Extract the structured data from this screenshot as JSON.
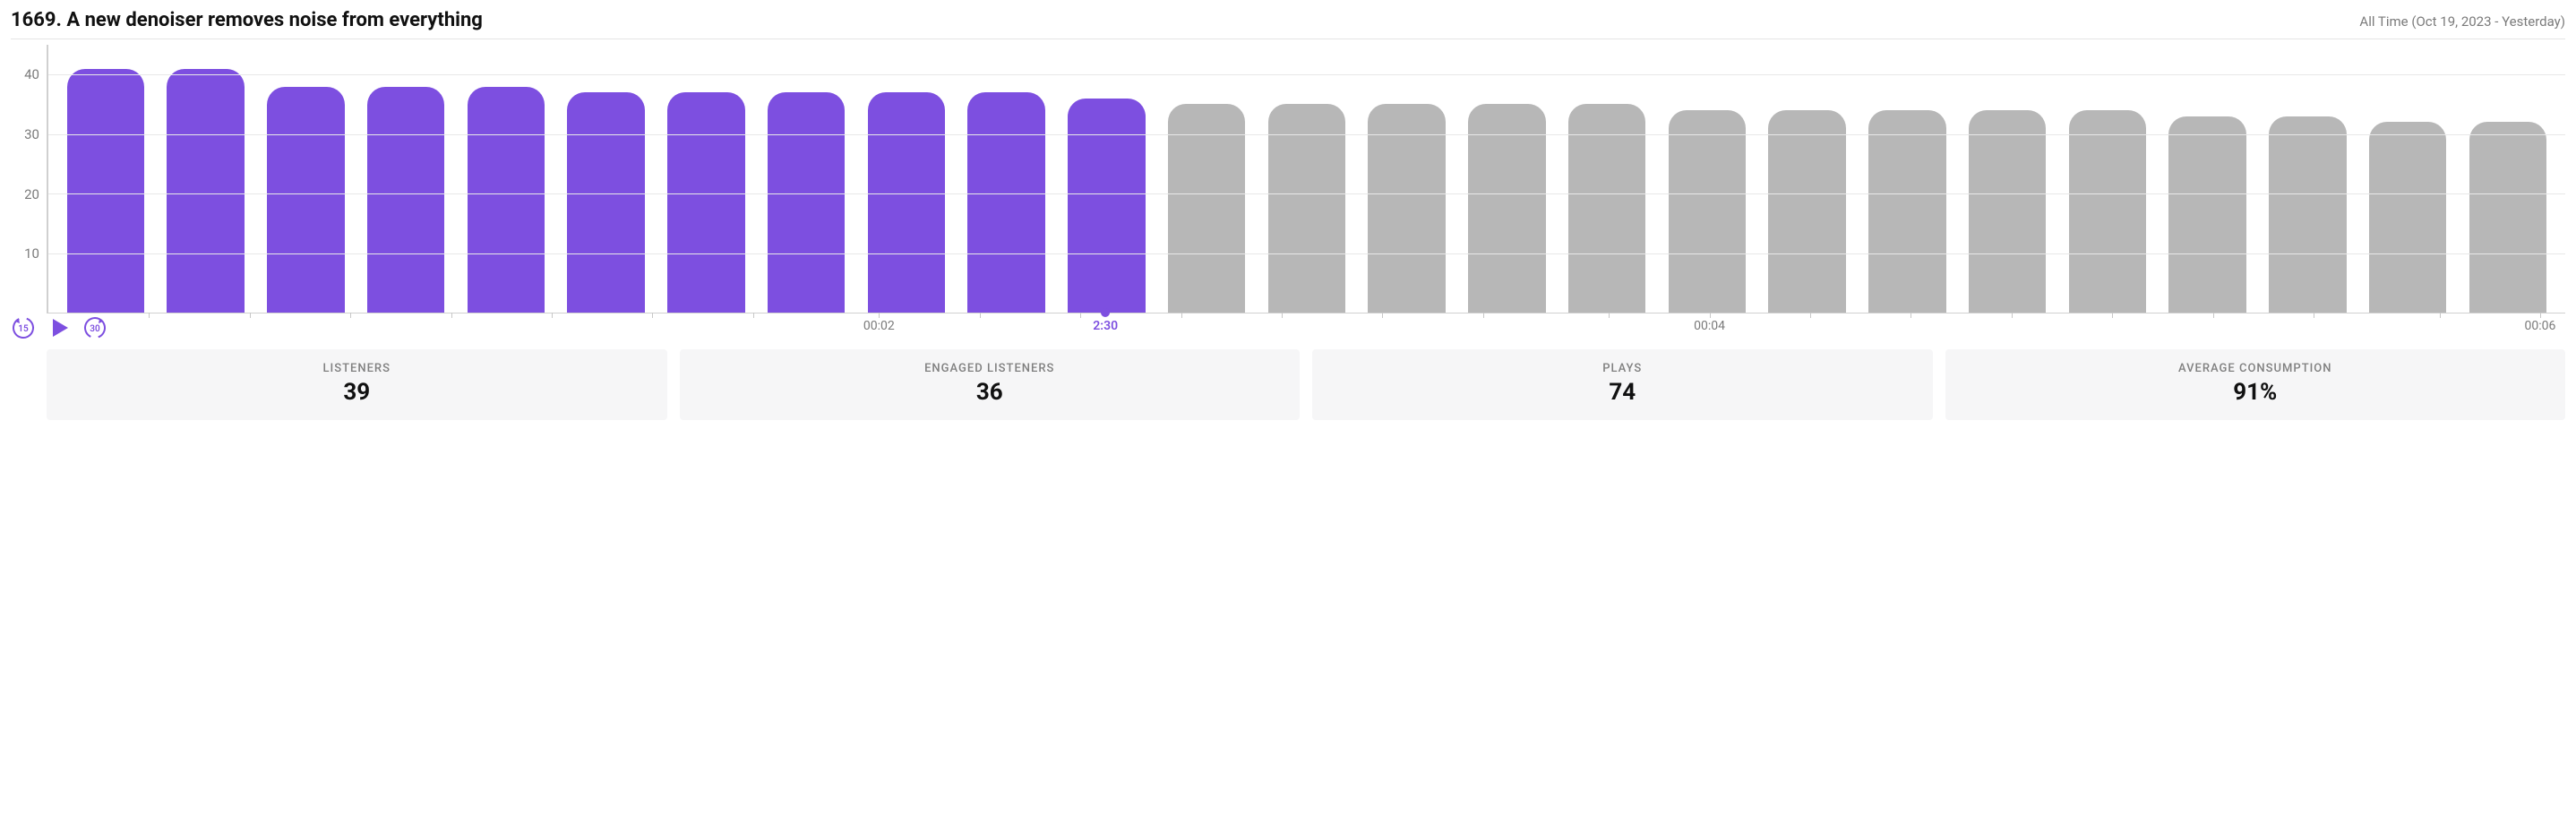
{
  "header": {
    "title": "1669. A new denoiser removes noise from everything",
    "subtitle": "All Time (Oct 19, 2023 - Yesterday)"
  },
  "chart": {
    "type": "bar",
    "ylim": [
      0,
      45
    ],
    "yticks": [
      10,
      20,
      30,
      40
    ],
    "grid_color": "#e8e8e8",
    "axis_color": "#d0d0d0",
    "bar_color_played": "#7d4fe0",
    "bar_color_unplayed": "#b7b7b7",
    "playhead_color": "#7d4fe0",
    "bars": [
      41,
      41,
      38,
      38,
      38,
      37,
      37,
      37,
      37,
      37,
      36,
      35,
      35,
      35,
      35,
      35,
      34,
      34,
      34,
      34,
      34,
      33,
      33,
      32,
      32
    ],
    "played_count": 11,
    "playhead_percent": 42,
    "x_ticks": [
      {
        "pos": 33,
        "label": "00:02",
        "current": false
      },
      {
        "pos": 42,
        "label": "2:30",
        "current": true
      },
      {
        "pos": 66,
        "label": "00:04",
        "current": false
      },
      {
        "pos": 99,
        "label": "00:06",
        "current": false
      }
    ],
    "minor_tick_positions": [
      4,
      8,
      12,
      16,
      20,
      24,
      28,
      33,
      37,
      41,
      45,
      49,
      53,
      57,
      62,
      66,
      70,
      74,
      78,
      82,
      86,
      90,
      95,
      99
    ]
  },
  "controls": {
    "back_label": "15",
    "forward_label": "30",
    "icon_color": "#7d4fe0"
  },
  "stats": [
    {
      "label": "LISTENERS",
      "value": "39"
    },
    {
      "label": "ENGAGED LISTENERS",
      "value": "36"
    },
    {
      "label": "PLAYS",
      "value": "74"
    },
    {
      "label": "AVERAGE CONSUMPTION",
      "value": "91%"
    }
  ]
}
